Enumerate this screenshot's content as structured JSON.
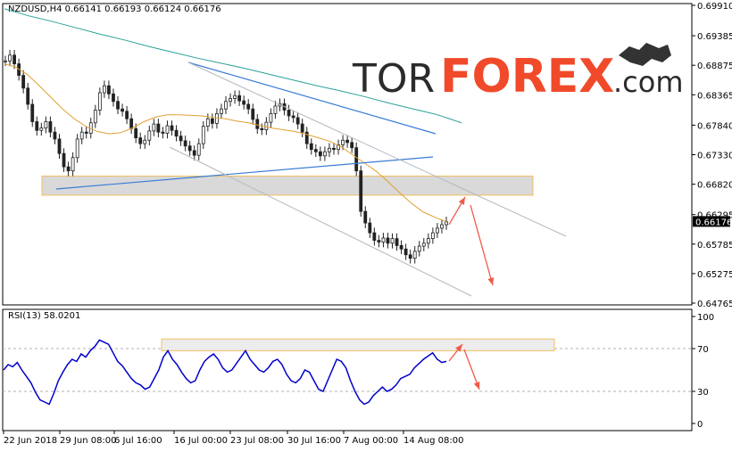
{
  "header": {
    "symbol_line": "NZDUSD,H4  0.66141 0.66193 0.66124 0.66176",
    "rsi_label": "RSI(13) 58.0201"
  },
  "logo": {
    "text_tor": "TOR",
    "text_forex": "FOREX",
    "text_com": ".com"
  },
  "colors": {
    "bull_bear": "#222222",
    "ma_fast": "#e0a030",
    "ma_slow": "#2aa198",
    "trend": "#3a7bd5",
    "channel": "#b0b8c0",
    "arrows": "#f05a4a",
    "rsi": "#0000cc",
    "zone_fill": "#d9d9d9",
    "zone_border": "#f0c060"
  },
  "chart_data": [
    {
      "type": "line",
      "title": "NZDUSD,H4",
      "y_ticks": [
        "0.69910",
        "0.69385",
        "0.68875",
        "0.68365",
        "0.67840",
        "0.67330",
        "0.66820",
        "0.66295",
        "0.65785",
        "0.65275",
        "0.64765"
      ],
      "y_tick_values": [
        0.6991,
        0.69385,
        0.68875,
        0.68365,
        0.6784,
        0.6733,
        0.6682,
        0.66295,
        0.65785,
        0.65275,
        0.64765
      ],
      "ylim": [
        0.64765,
        0.6991
      ],
      "x_ticks": [
        "22 Jun 2018",
        "29 Jun 08:00",
        "6 Jul 16:00",
        "16 Jul 00:00",
        "23 Jul 08:00",
        "30 Jul 16:00",
        "7 Aug 00:00",
        "14 Aug 08:00"
      ],
      "current_price": "0.66176",
      "series": [
        {
          "name": "",
          "kind": "price",
          "values": [
            0.6895,
            0.6905,
            0.689,
            0.687,
            0.6848,
            0.682,
            0.679,
            0.6775,
            0.6779,
            0.679,
            0.6772,
            0.676,
            0.6735,
            0.6712,
            0.6705,
            0.6728,
            0.676,
            0.6772,
            0.677,
            0.6788,
            0.681,
            0.684,
            0.6852,
            0.6838,
            0.6825,
            0.6812,
            0.6808,
            0.6795,
            0.6778,
            0.6762,
            0.6752,
            0.6758,
            0.6774,
            0.6786,
            0.6772,
            0.677,
            0.6783,
            0.6775,
            0.6765,
            0.6757,
            0.6748,
            0.674,
            0.6732,
            0.6752,
            0.6782,
            0.6795,
            0.6787,
            0.6804,
            0.6812,
            0.6825,
            0.683,
            0.6835,
            0.6826,
            0.682,
            0.6812,
            0.6794,
            0.6778,
            0.6776,
            0.6789,
            0.6804,
            0.6817,
            0.6821,
            0.681,
            0.68,
            0.6797,
            0.6786,
            0.6772,
            0.6752,
            0.6742,
            0.6738,
            0.6731,
            0.6738,
            0.6744,
            0.6742,
            0.675,
            0.6758,
            0.6754,
            0.6745,
            0.6705,
            0.6635,
            0.6615,
            0.6598,
            0.6585,
            0.6582,
            0.6589,
            0.658,
            0.6588,
            0.6576,
            0.657,
            0.656,
            0.6554,
            0.6566,
            0.6575,
            0.658,
            0.6588,
            0.6598,
            0.6606,
            0.6612,
            0.6617
          ]
        },
        {
          "name": "",
          "kind": "ma_fast",
          "values": [
            0.689,
            0.6884,
            0.6871,
            0.6852,
            0.6832,
            0.6812,
            0.6795,
            0.6782,
            0.6773,
            0.6769,
            0.6771,
            0.6779,
            0.679,
            0.6798,
            0.6802,
            0.6802,
            0.6801,
            0.68,
            0.6797,
            0.6795,
            0.6791,
            0.6788,
            0.6783,
            0.6779,
            0.6776,
            0.6773,
            0.6768,
            0.6762,
            0.6756,
            0.6746,
            0.6732,
            0.6718,
            0.6704,
            0.6686,
            0.6667,
            0.6649,
            0.6634,
            0.6625,
            0.6617
          ]
        },
        {
          "name": "",
          "kind": "ma_slow",
          "values": [
            0.6985,
            0.6973,
            0.6963,
            0.6952,
            0.6941,
            0.6931,
            0.692,
            0.691,
            0.69,
            0.6891,
            0.6882,
            0.6872,
            0.6862,
            0.6852,
            0.6843,
            0.6833,
            0.6822,
            0.6812,
            0.6802,
            0.6788
          ]
        },
        {
          "name": "",
          "kind": "zone",
          "values": [
            0.6696,
            0.6663
          ]
        }
      ]
    },
    {
      "type": "line",
      "title": "RSI(13) 58.0201",
      "y_ticks": [
        "100",
        "70",
        "30",
        "0"
      ],
      "y_tick_values": [
        100,
        70,
        30,
        0
      ],
      "ylim": [
        0,
        100
      ],
      "series": [
        {
          "name": "",
          "kind": "rsi",
          "values": [
            50,
            55,
            53,
            57,
            50,
            44,
            38,
            29,
            22,
            20,
            18,
            28,
            40,
            48,
            55,
            60,
            58,
            65,
            62,
            68,
            72,
            78,
            76,
            74,
            66,
            58,
            54,
            48,
            42,
            38,
            36,
            32,
            34,
            42,
            50,
            62,
            68,
            60,
            55,
            48,
            42,
            38,
            40,
            50,
            58,
            62,
            65,
            60,
            52,
            48,
            50,
            56,
            62,
            68,
            60,
            55,
            50,
            48,
            52,
            58,
            60,
            55,
            46,
            40,
            38,
            42,
            50,
            48,
            40,
            32,
            30,
            40,
            50,
            60,
            58,
            52,
            40,
            30,
            22,
            18,
            20,
            26,
            30,
            34,
            30,
            32,
            36,
            42,
            44,
            46,
            52,
            56,
            60,
            63,
            66,
            60,
            57,
            58
          ]
        },
        {
          "name": "",
          "kind": "zone",
          "values": [
            79,
            68
          ]
        }
      ]
    }
  ]
}
